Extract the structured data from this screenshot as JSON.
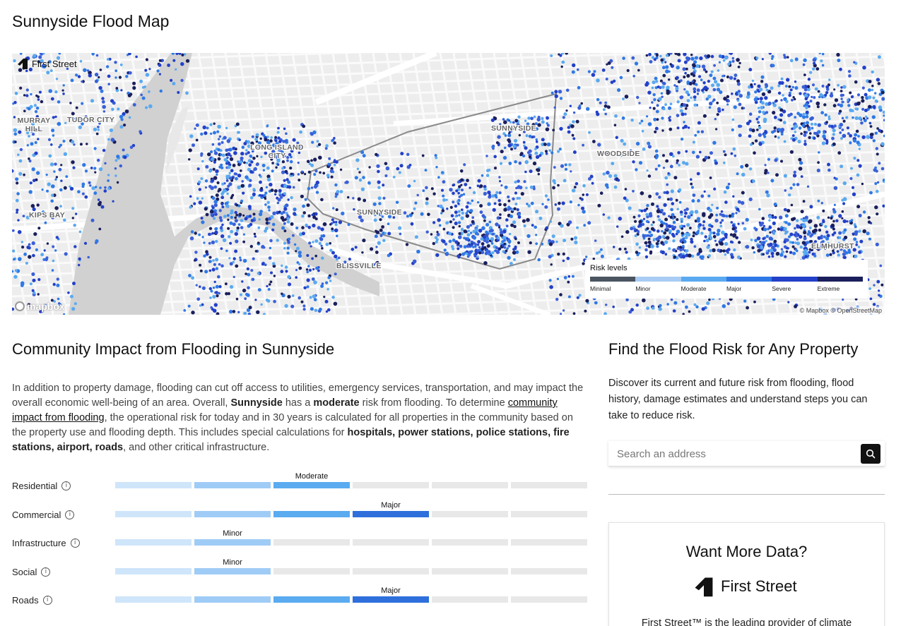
{
  "page": {
    "title": "Sunnyside Flood Map"
  },
  "map": {
    "brand": "First Street",
    "place_labels": [
      "MURRAY HILL",
      "TUDOR CITY",
      "LONG ISLAND CITY",
      "SUNNYSIDE",
      "WOODSIDE",
      "KIPS BAY",
      "SUNNYSIDE",
      "BLISSVILLE",
      "ELMHURST"
    ],
    "mapbox_logo": "mapbox",
    "attribution": "© Mapbox © OpenStreetMap",
    "legend": {
      "title": "Risk levels",
      "levels": [
        "Minimal",
        "Minor",
        "Moderate",
        "Major",
        "Severe",
        "Extreme"
      ],
      "colors": [
        "#4a5561",
        "#a8ccf3",
        "#5aa9f0",
        "#2f79e6",
        "#2340c8",
        "#1a1f5c"
      ]
    }
  },
  "community": {
    "title": "Community Impact from Flooding in Sunnyside",
    "p_part1": "In addition to property damage, flooding can cut off access to utilities, emergency services, transportation, and may impact the overall economic well-being of an area. Overall, ",
    "p_place": "Sunnyside",
    "p_part2": " has a ",
    "p_risk": "moderate",
    "p_part3": " risk from flooding. To determine ",
    "p_link": "community impact from flooding",
    "p_part4": ", the operational risk for today and in 30 years is calculated for all properties in the community based on the property use and flooding depth. This includes special calculations for ",
    "p_bold": "hospitals, power stations, police stations, fire stations, airport, roads",
    "p_part5": ", and other critical infrastructure.",
    "segment_colors": [
      "#cfe5fa",
      "#9fccf6",
      "#5aabf0",
      "#2e6fdc"
    ],
    "rows": [
      {
        "label": "Residential",
        "level": 3,
        "level_label": "Moderate"
      },
      {
        "label": "Commercial",
        "level": 4,
        "level_label": "Major"
      },
      {
        "label": "Infrastructure",
        "level": 2,
        "level_label": "Minor"
      },
      {
        "label": "Social",
        "level": 2,
        "level_label": "Minor"
      },
      {
        "label": "Roads",
        "level": 4,
        "level_label": "Major"
      }
    ]
  },
  "property": {
    "title": "Find the Flood Risk for Any Property",
    "description": "Discover its current and future risk from flooding, flood history, damage estimates and understand steps you can take to reduce risk.",
    "search_placeholder": "Search an address"
  },
  "card": {
    "title": "Want More Data?",
    "brand": "First Street",
    "text": "First Street™ is the leading provider of climate"
  }
}
